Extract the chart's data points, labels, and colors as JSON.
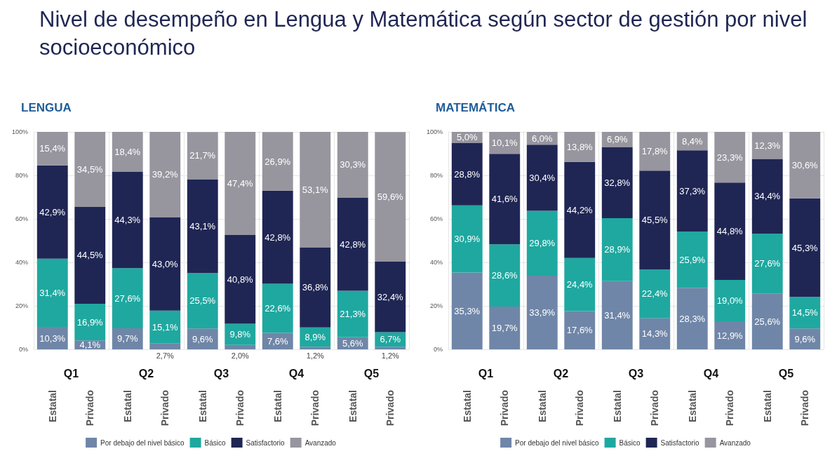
{
  "chart_data": [
    {
      "type": "bar",
      "title": "Nivel de desempeño en Lengua y Matemática según sector de gestión por nivel socioeconómico",
      "subtitle": "LENGUA",
      "categories": [
        "Estatal",
        "Privado",
        "Estatal",
        "Privado",
        "Estatal",
        "Privado",
        "Estatal",
        "Privado",
        "Estatal",
        "Privado"
      ],
      "annotations": [
        "Q1",
        "Q2",
        "Q3",
        "Q4",
        "Q5"
      ],
      "stacked": true,
      "ylim": [
        0,
        100
      ],
      "yticks": [
        {
          "value": 0,
          "label": "0%"
        },
        {
          "value": 20,
          "label": "20%"
        },
        {
          "value": 40,
          "label": "40%"
        },
        {
          "value": 60,
          "label": "60%"
        },
        {
          "value": 80,
          "label": "80%"
        },
        {
          "value": 100,
          "label": "100%"
        }
      ],
      "grid": true,
      "legend": "bottom",
      "series": [
        {
          "name": "Por debajo del nivel básico",
          "color": "#6f86a8",
          "values": [
            10.3,
            4.1,
            9.7,
            2.7,
            9.6,
            2.0,
            7.6,
            1.2,
            5.6,
            1.2
          ],
          "value_labels": [
            "10,3%",
            "4,1%",
            "9,7%",
            "2,7%",
            "9,6%",
            "2,0%",
            "7,6%",
            "1,2%",
            "5,6%",
            "1,2%"
          ]
        },
        {
          "name": "Básico",
          "color": "#1fa8a0",
          "values": [
            31.4,
            16.9,
            27.6,
            15.1,
            25.5,
            9.8,
            22.6,
            8.9,
            21.3,
            6.7
          ],
          "value_labels": [
            "31,4%",
            "16,9%",
            "27,6%",
            "15,1%",
            "25,5%",
            "9,8%",
            "22,6%",
            "8,9%",
            "21,3%",
            "6,7%"
          ]
        },
        {
          "name": "Satisfactorio",
          "color": "#1f2654",
          "values": [
            42.9,
            44.5,
            44.3,
            43.0,
            43.1,
            40.8,
            42.8,
            36.8,
            42.8,
            32.4
          ],
          "value_labels": [
            "42,9%",
            "44,5%",
            "44,3%",
            "43,0%",
            "43,1%",
            "40,8%",
            "42,8%",
            "36,8%",
            "42,8%",
            "32,4%"
          ]
        },
        {
          "name": "Avanzado",
          "color": "#97959e",
          "values": [
            15.4,
            34.5,
            18.4,
            39.2,
            21.7,
            47.4,
            26.9,
            53.1,
            30.3,
            59.6
          ],
          "value_labels": [
            "15,4%",
            "34,5%",
            "18,4%",
            "39,2%",
            "21,7%",
            "47,4%",
            "26,9%",
            "53,1%",
            "30,3%",
            "59,6%"
          ]
        }
      ]
    },
    {
      "type": "bar",
      "subtitle": "MATEMÁTICA",
      "categories": [
        "Estatal",
        "Privado",
        "Estatal",
        "Privado",
        "Estatal",
        "Privado",
        "Estatal",
        "Privado",
        "Estatal",
        "Privado"
      ],
      "annotations": [
        "Q1",
        "Q2",
        "Q3",
        "Q4",
        "Q5"
      ],
      "stacked": true,
      "ylim": [
        0,
        100
      ],
      "yticks": [
        {
          "value": 0,
          "label": "0%"
        },
        {
          "value": 20,
          "label": "20%"
        },
        {
          "value": 40,
          "label": "40%"
        },
        {
          "value": 60,
          "label": "60%"
        },
        {
          "value": 80,
          "label": "80%"
        },
        {
          "value": 100,
          "label": "100%"
        }
      ],
      "grid": true,
      "legend": "bottom",
      "series": [
        {
          "name": "Por debajo del nivel básico",
          "color": "#6f86a8",
          "values": [
            35.3,
            19.7,
            33.9,
            17.6,
            31.4,
            14.3,
            28.3,
            12.9,
            25.6,
            9.6
          ],
          "value_labels": [
            "35,3%",
            "19,7%",
            "33,9%",
            "17,6%",
            "31,4%",
            "14,3%",
            "28,3%",
            "12,9%",
            "25,6%",
            "9,6%"
          ]
        },
        {
          "name": "Básico",
          "color": "#1fa8a0",
          "values": [
            30.9,
            28.6,
            29.8,
            24.4,
            28.9,
            22.4,
            25.9,
            19.0,
            27.6,
            14.5
          ],
          "value_labels": [
            "30,9%",
            "28,6%",
            "29,8%",
            "24,4%",
            "28,9%",
            "22,4%",
            "25,9%",
            "19,0%",
            "27,6%",
            "14,5%"
          ]
        },
        {
          "name": "Satisfactorio",
          "color": "#1f2654",
          "values": [
            28.8,
            41.6,
            30.4,
            44.2,
            32.8,
            45.5,
            37.3,
            44.8,
            34.4,
            45.3
          ],
          "value_labels": [
            "28,8%",
            "41,6%",
            "30,4%",
            "44,2%",
            "32,8%",
            "45,5%",
            "37,3%",
            "44,8%",
            "34,4%",
            "45,3%"
          ]
        },
        {
          "name": "Avanzado",
          "color": "#97959e",
          "values": [
            5.0,
            10.1,
            6.0,
            13.8,
            6.9,
            17.8,
            8.4,
            23.3,
            12.3,
            30.6
          ],
          "value_labels": [
            "5,0%",
            "10,1%",
            "6,0%",
            "13,8%",
            "6,9%",
            "17,8%",
            "8,4%",
            "23,3%",
            "12,3%",
            "30,6%"
          ]
        }
      ]
    }
  ]
}
